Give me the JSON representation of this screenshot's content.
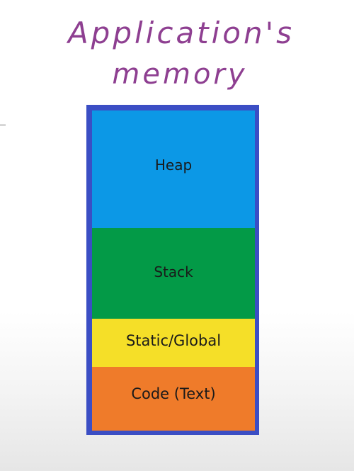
{
  "title": {
    "line1": "Application's",
    "line2": "memory"
  },
  "colors": {
    "title": "#8e3f91",
    "frame": "#3b4ec4",
    "heap": "#0c98e6",
    "stack": "#039a47",
    "static_global": "#f5df28",
    "code": "#ef7b2a"
  },
  "segments": [
    {
      "label": "Heap"
    },
    {
      "label": "Stack"
    },
    {
      "label": "Static/Global"
    },
    {
      "label": "Code (Text)"
    }
  ]
}
